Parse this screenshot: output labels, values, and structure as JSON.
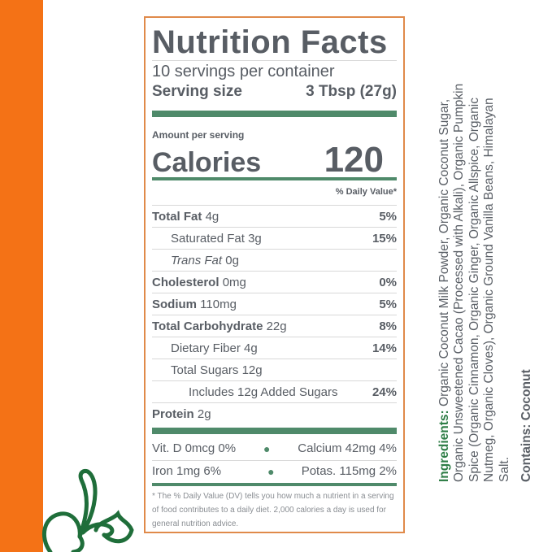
{
  "colors": {
    "accent_orange": "#f47216",
    "bar_green": "#4f8a6a",
    "text_gray": "#585d64",
    "ingredients_green": "#2e7d46"
  },
  "label": {
    "title": "Nutrition Facts",
    "servings": "10 servings per container",
    "serving_size_label": "Serving size",
    "serving_size_value": "3 Tbsp (27g)",
    "amount_per_serving": "Amount per serving",
    "calories_label": "Calories",
    "calories_value": "120",
    "daily_value_header": "% Daily Value*",
    "nutrients": [
      {
        "name": "Total Fat",
        "amount": "4g",
        "dv": "5%"
      },
      {
        "name": "Saturated Fat",
        "amount": "3g",
        "dv": "15%"
      },
      {
        "name": "Trans Fat",
        "amount": "0g",
        "dv": ""
      },
      {
        "name": "Cholesterol",
        "amount": "0mg",
        "dv": "0%"
      },
      {
        "name": "Sodium",
        "amount": "110mg",
        "dv": "5%"
      },
      {
        "name": "Total Carbohydrate",
        "amount": "22g",
        "dv": "8%"
      },
      {
        "name": "Dietary Fiber",
        "amount": "4g",
        "dv": "14%"
      },
      {
        "name": "Total Sugars",
        "amount": "12g",
        "dv": ""
      },
      {
        "name": "Includes 12g Added Sugars",
        "amount": "",
        "dv": "24%"
      },
      {
        "name": "Protein",
        "amount": "2g",
        "dv": ""
      }
    ],
    "vitamins": [
      {
        "left": "Vit. D 0mcg 0%",
        "right": "Calcium 42mg 4%"
      },
      {
        "left": "Iron 1mg 6%",
        "right": "Potas. 115mg 2%"
      }
    ],
    "footnote": "* The % Daily Value (DV) tells you how much a nutrient in a serving of food contributes to a daily diet. 2,000 calories a day is used for general nutrition advice."
  },
  "ingredients": {
    "heading": "Ingredients:",
    "text": " Organic Coconut Milk Powder, Organic Coconut Sugar, Organic Unsweetened Cacao (Processed with Alkali), Organic Pumpkin Spice (Organic Cinnamon, Organic Ginger, Organic Allspice, Organic Nutmeg, Organic Cloves), Organic Ground Vanilla Beans, Himalayan Salt.",
    "contains": "Contains: Coconut"
  }
}
